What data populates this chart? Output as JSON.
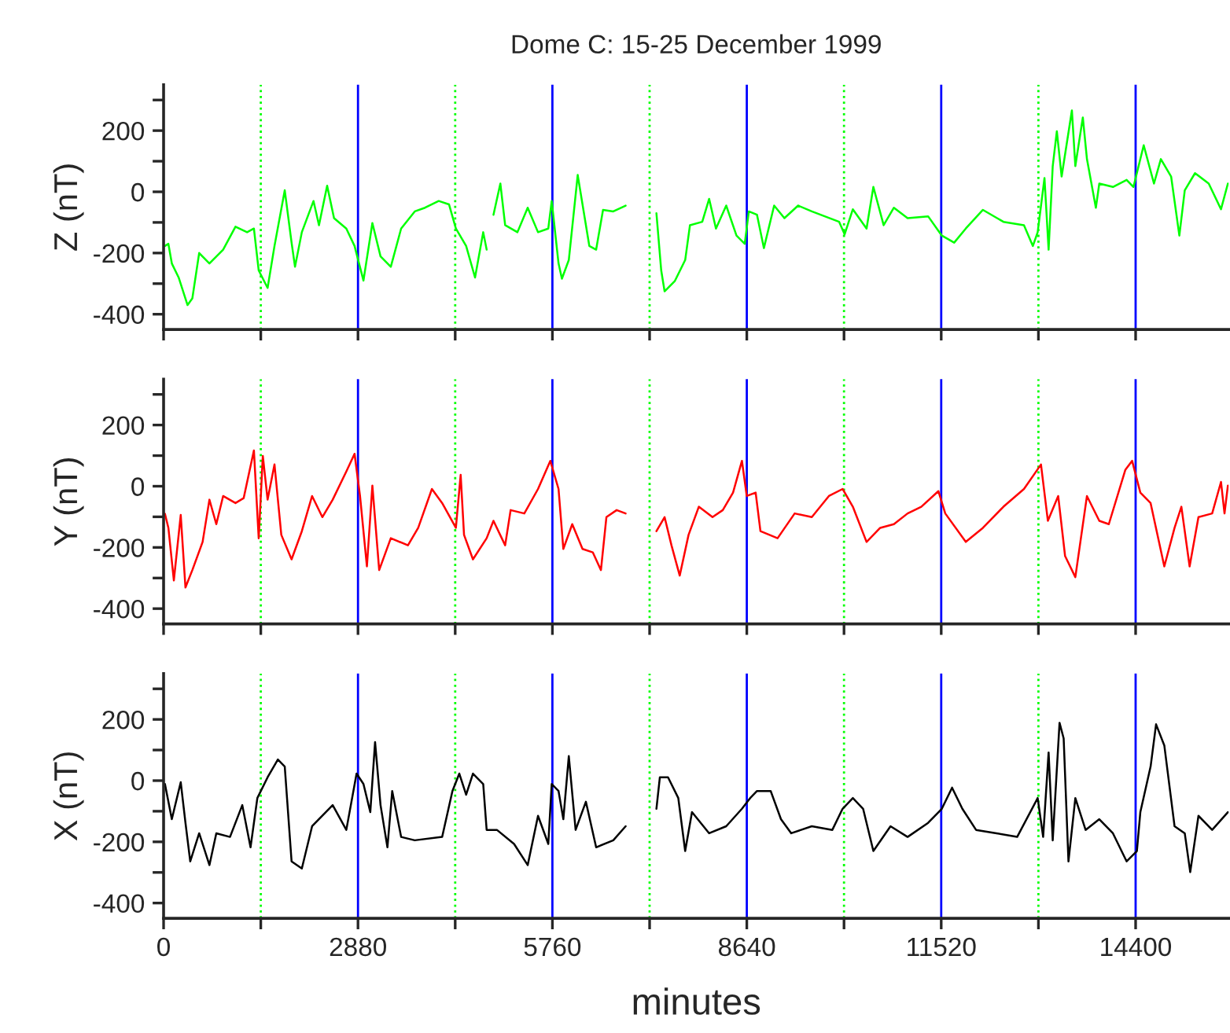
{
  "chart_data": [
    {
      "type": "line",
      "title": "Dome C: 15-25 December 1999",
      "ylabel": "Z (nT)",
      "xlim": [
        0,
        15780
      ],
      "ylim": [
        -450,
        350
      ],
      "xticks": [
        0,
        {
          "value": 1440,
          "label": null
        },
        2880,
        {
          "value": 4320,
          "label": null
        },
        5760,
        {
          "value": 7200,
          "label": null
        },
        8640,
        {
          "value": 10080,
          "label": null
        },
        11520,
        {
          "value": 12960,
          "label": null
        },
        14400
      ],
      "yticks": [
        -400,
        {
          "value": -300,
          "label": null
        },
        -200,
        {
          "value": -100,
          "label": null
        },
        0,
        {
          "value": 100,
          "label": null
        },
        200,
        {
          "value": 300,
          "label": null
        }
      ],
      "tick_labels": "y",
      "grid": false,
      "ref_lines": [
        {
          "axis": "x",
          "value": 1440,
          "color": "#00ff00",
          "line_style": "dotted"
        },
        {
          "axis": "x",
          "value": 2880,
          "color": "#0000ff",
          "line_style": "solid"
        },
        {
          "axis": "x",
          "value": 4320,
          "color": "#00ff00",
          "line_style": "dotted"
        },
        {
          "axis": "x",
          "value": 5760,
          "color": "#0000ff",
          "line_style": "solid"
        },
        {
          "axis": "x",
          "value": 7200,
          "color": "#00ff00",
          "line_style": "dotted"
        },
        {
          "axis": "x",
          "value": 8640,
          "color": "#0000ff",
          "line_style": "solid"
        },
        {
          "axis": "x",
          "value": 10080,
          "color": "#00ff00",
          "line_style": "dotted"
        },
        {
          "axis": "x",
          "value": 11520,
          "color": "#0000ff",
          "line_style": "solid"
        },
        {
          "axis": "x",
          "value": 12960,
          "color": "#00ff00",
          "line_style": "dotted"
        },
        {
          "axis": "x",
          "value": 14400,
          "color": "#0000ff",
          "line_style": "solid"
        }
      ],
      "series": [
        {
          "color": "#00ff00",
          "x": [
            20,
            71,
            122,
            223,
            355,
            426,
            527,
            679,
            882,
            1065,
            1237,
            1338,
            1409,
            1541,
            1643,
            1795,
            1896,
            1947,
            2048,
            2221,
            2302,
            2423,
            2525,
            2707,
            2829,
            2961,
            3093,
            3214,
            3366,
            3519,
            3721,
            3873,
            4076,
            4228,
            4330,
            4482,
            4614,
            4735,
            4786,
            4840,
            4887,
            4989,
            5060,
            5242,
            5394,
            5547,
            5699,
            5750,
            5851,
            5901,
            6003,
            6135,
            6206,
            6307,
            6408,
            6510,
            6662,
            6845,
            7000,
            7301,
            7372,
            7422,
            7575,
            7727,
            7798,
            7980,
            8082,
            8183,
            8335,
            8487,
            8609,
            8670,
            8791,
            8893,
            9045,
            9197,
            9400,
            9603,
            10008,
            10089,
            10211,
            10414,
            10515,
            10667,
            10819,
            11022,
            11326,
            11529,
            11712,
            11884,
            12138,
            12442,
            12746,
            12878,
            12949,
            13050,
            13111,
            13172,
            13233,
            13304,
            13456,
            13507,
            13618,
            13679,
            13811,
            13862,
            14064,
            14267,
            14368,
            14520,
            14672,
            14774,
            14926,
            15048,
            15128,
            15280,
            15483,
            15665,
            15767
          ],
          "values": [
            -177,
            -170,
            -234,
            -280,
            -370,
            -348,
            -200,
            -234,
            -189,
            -114,
            -132,
            -120,
            -257,
            -314,
            -177,
            5,
            -166,
            -245,
            -132,
            -30,
            -109,
            20,
            -86,
            -120,
            -177,
            -290,
            -102,
            -211,
            -245,
            -120,
            -64,
            -52,
            -30,
            -41,
            -120,
            -177,
            -280,
            -132,
            -189,
            null,
            -75,
            27,
            -109,
            -132,
            -52,
            -132,
            -120,
            -30,
            -234,
            -284,
            -223,
            55,
            -41,
            -177,
            -189,
            -59,
            -64,
            -45,
            null,
            -70,
            -257,
            -325,
            -291,
            -223,
            -109,
            -98,
            -23,
            -120,
            -45,
            -143,
            -170,
            -64,
            -75,
            -184,
            -45,
            -86,
            -45,
            -64,
            -98,
            -139,
            -57,
            -120,
            16,
            -109,
            -52,
            -86,
            -80,
            -143,
            -166,
            -120,
            -59,
            -98,
            -109,
            -177,
            -132,
            45,
            -189,
            84,
            198,
            50,
            266,
            84,
            243,
            107,
            -52,
            27,
            16,
            39,
            16,
            152,
            27,
            107,
            50,
            -143,
            5,
            61,
            27,
            -57,
            27
          ]
        }
      ]
    },
    {
      "type": "line",
      "ylabel": "Y (nT)",
      "xlim": [
        0,
        15780
      ],
      "ylim": [
        -450,
        350
      ],
      "xticks": [
        0,
        {
          "value": 1440,
          "label": null
        },
        2880,
        {
          "value": 4320,
          "label": null
        },
        5760,
        {
          "value": 7200,
          "label": null
        },
        8640,
        {
          "value": 10080,
          "label": null
        },
        11520,
        {
          "value": 12960,
          "label": null
        },
        14400
      ],
      "yticks": [
        -400,
        {
          "value": -300,
          "label": null
        },
        -200,
        {
          "value": -100,
          "label": null
        },
        0,
        {
          "value": 100,
          "label": null
        },
        200,
        {
          "value": 300,
          "label": null
        }
      ],
      "tick_labels": "y",
      "grid": false,
      "ref_lines": [
        {
          "axis": "x",
          "value": 1440,
          "color": "#00ff00",
          "line_style": "dotted"
        },
        {
          "axis": "x",
          "value": 2880,
          "color": "#0000ff",
          "line_style": "solid"
        },
        {
          "axis": "x",
          "value": 4320,
          "color": "#00ff00",
          "line_style": "dotted"
        },
        {
          "axis": "x",
          "value": 5760,
          "color": "#0000ff",
          "line_style": "solid"
        },
        {
          "axis": "x",
          "value": 7200,
          "color": "#00ff00",
          "line_style": "dotted"
        },
        {
          "axis": "x",
          "value": 8640,
          "color": "#0000ff",
          "line_style": "solid"
        },
        {
          "axis": "x",
          "value": 10080,
          "color": "#00ff00",
          "line_style": "dotted"
        },
        {
          "axis": "x",
          "value": 11520,
          "color": "#0000ff",
          "line_style": "solid"
        },
        {
          "axis": "x",
          "value": 12960,
          "color": "#00ff00",
          "line_style": "dotted"
        },
        {
          "axis": "x",
          "value": 14400,
          "color": "#0000ff",
          "line_style": "solid"
        }
      ],
      "series": [
        {
          "color": "#ff0000",
          "x": [
            20,
            71,
            152,
            254,
            324,
            426,
            578,
            679,
            781,
            882,
            1065,
            1186,
            1338,
            1409,
            1470,
            1541,
            1643,
            1744,
            1896,
            2048,
            2200,
            2352,
            2505,
            2707,
            2829,
            2910,
            3012,
            3093,
            3194,
            3366,
            3620,
            3772,
            3975,
            4127,
            4330,
            4401,
            4451,
            4583,
            4786,
            4887,
            5060,
            5141,
            5344,
            5547,
            5729,
            5851,
            5922,
            6054,
            6206,
            6358,
            6479,
            6560,
            6712,
            6845,
            7000,
            7301,
            7422,
            7524,
            7646,
            7777,
            7929,
            8132,
            8284,
            8436,
            8568,
            8639,
            8771,
            8842,
            9096,
            9349,
            9603,
            9856,
            10059,
            10211,
            10414,
            10616,
            10819,
            11022,
            11225,
            11478,
            11580,
            11884,
            12138,
            12442,
            12746,
            12998,
            13100,
            13253,
            13355,
            13507,
            13679,
            13862,
            14003,
            14247,
            14348,
            14470,
            14622,
            14825,
            14977,
            15078,
            15200,
            15331,
            15534,
            15665,
            15717,
            15767
          ],
          "values": [
            -90,
            -136,
            -308,
            -94,
            -331,
            -274,
            -182,
            -44,
            -124,
            -32,
            -55,
            -39,
            117,
            -170,
            99,
            -44,
            71,
            -159,
            -239,
            -147,
            -32,
            -101,
            -44,
            48,
            106,
            -32,
            -262,
            2,
            -274,
            -170,
            -193,
            -136,
            -9,
            -55,
            -136,
            37,
            -159,
            -239,
            -170,
            -113,
            -193,
            -78,
            -89,
            -9,
            83,
            -9,
            -205,
            -124,
            -205,
            -216,
            -274,
            -101,
            -78,
            -89,
            null,
            -147,
            -101,
            -193,
            -292,
            -159,
            -67,
            -101,
            -78,
            -21,
            83,
            -32,
            -21,
            -147,
            -170,
            -89,
            -101,
            -32,
            -9,
            -67,
            -182,
            -136,
            -124,
            -89,
            -67,
            -16,
            -89,
            -182,
            -136,
            -67,
            -9,
            71,
            -113,
            -32,
            -228,
            -297,
            -32,
            -113,
            -124,
            53,
            83,
            -21,
            -55,
            -262,
            -136,
            -67,
            -262,
            -101,
            -89,
            14,
            -89,
            2
          ]
        }
      ]
    },
    {
      "type": "line",
      "ylabel": "X (nT)",
      "xlabel": "minutes",
      "xlim": [
        0,
        15780
      ],
      "ylim": [
        -450,
        350
      ],
      "xticks": [
        0,
        {
          "value": 1440,
          "label": null
        },
        2880,
        {
          "value": 4320,
          "label": null
        },
        5760,
        {
          "value": 7200,
          "label": null
        },
        8640,
        {
          "value": 10080,
          "label": null
        },
        11520,
        {
          "value": 12960,
          "label": null
        },
        14400
      ],
      "yticks": [
        -400,
        {
          "value": -300,
          "label": null
        },
        -200,
        {
          "value": -100,
          "label": null
        },
        0,
        {
          "value": 100,
          "label": null
        },
        200,
        {
          "value": 300,
          "label": null
        }
      ],
      "grid": false,
      "ref_lines": [
        {
          "axis": "x",
          "value": 1440,
          "color": "#00ff00",
          "line_style": "dotted"
        },
        {
          "axis": "x",
          "value": 2880,
          "color": "#0000ff",
          "line_style": "solid"
        },
        {
          "axis": "x",
          "value": 4320,
          "color": "#00ff00",
          "line_style": "dotted"
        },
        {
          "axis": "x",
          "value": 5760,
          "color": "#0000ff",
          "line_style": "solid"
        },
        {
          "axis": "x",
          "value": 7200,
          "color": "#00ff00",
          "line_style": "dotted"
        },
        {
          "axis": "x",
          "value": 8640,
          "color": "#0000ff",
          "line_style": "solid"
        },
        {
          "axis": "x",
          "value": 10080,
          "color": "#00ff00",
          "line_style": "dotted"
        },
        {
          "axis": "x",
          "value": 11520,
          "color": "#0000ff",
          "line_style": "solid"
        },
        {
          "axis": "x",
          "value": 12960,
          "color": "#00ff00",
          "line_style": "dotted"
        },
        {
          "axis": "x",
          "value": 14400,
          "color": "#0000ff",
          "line_style": "solid"
        }
      ],
      "series": [
        {
          "color": "#000000",
          "x": [
            20,
            122,
            254,
            324,
            395,
            527,
            679,
            781,
            984,
            1166,
            1288,
            1389,
            1541,
            1693,
            1795,
            1896,
            2048,
            2200,
            2505,
            2707,
            2859,
            2961,
            3062,
            3133,
            3214,
            3316,
            3387,
            3519,
            3721,
            4127,
            4279,
            4381,
            4482,
            4583,
            4735,
            4786,
            4938,
            5192,
            5394,
            5547,
            5699,
            5750,
            5851,
            5922,
            6003,
            6104,
            6256,
            6408,
            6662,
            6845,
            7000,
            7301,
            7352,
            7473,
            7625,
            7727,
            7828,
            8082,
            8335,
            8568,
            8690,
            8791,
            8994,
            9146,
            9298,
            9603,
            9907,
            10059,
            10211,
            10363,
            10515,
            10769,
            11022,
            11326,
            11529,
            11681,
            11833,
            12036,
            12340,
            12645,
            12949,
            13030,
            13111,
            13172,
            13273,
            13334,
            13405,
            13507,
            13659,
            13862,
            14064,
            14267,
            14419,
            14470,
            14622,
            14703,
            14825,
            14977,
            15128,
            15209,
            15331,
            15534,
            15767
          ],
          "values": [
            -11,
            -126,
            -5,
            -138,
            -264,
            -172,
            -276,
            -172,
            -184,
            -80,
            -218,
            -57,
            11,
            69,
            46,
            -264,
            -287,
            -149,
            -80,
            -161,
            23,
            -11,
            -103,
            126,
            -80,
            -218,
            -34,
            -184,
            -195,
            -184,
            -34,
            23,
            -46,
            23,
            -11,
            -161,
            -161,
            -207,
            -276,
            -115,
            -207,
            -11,
            -34,
            -126,
            80,
            -161,
            -69,
            -218,
            -195,
            -149,
            null,
            -92,
            11,
            11,
            -57,
            -230,
            -103,
            -172,
            -149,
            -92,
            -57,
            -34,
            -34,
            -126,
            -172,
            -149,
            -161,
            -92,
            -57,
            -92,
            -230,
            -149,
            -184,
            -138,
            -92,
            -23,
            -92,
            -161,
            -172,
            -184,
            -57,
            -184,
            92,
            -195,
            189,
            138,
            -264,
            -57,
            -161,
            -126,
            -172,
            -264,
            -230,
            -103,
            46,
            184,
            115,
            -149,
            -172,
            -299,
            -115,
            -161,
            -103
          ]
        }
      ]
    }
  ]
}
